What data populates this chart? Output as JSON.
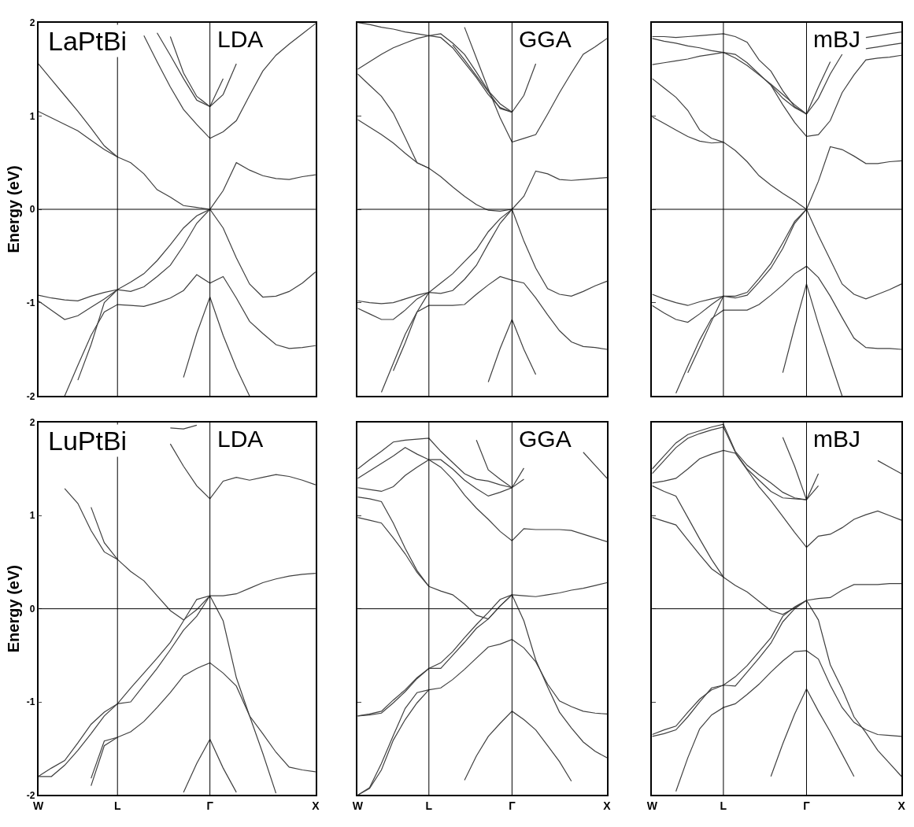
{
  "chart_data": [
    {
      "type": "line",
      "ylabel": "Energy (eV)",
      "annotations": [
        "LaPtBi",
        "LDA"
      ],
      "ylim": [
        -2,
        2
      ],
      "yticks": [
        -2,
        -1,
        0,
        1,
        2
      ],
      "tick_labels": "y",
      "marker": "none",
      "line_style": "solid",
      "categories": [
        "W",
        null,
        null,
        null,
        null,
        null,
        "L",
        null,
        null,
        null,
        null,
        null,
        null,
        "Γ",
        null,
        null,
        null,
        null,
        null,
        null,
        null,
        "X"
      ],
      "ref_lines": [
        {
          "axis": "x",
          "value": "L",
          "color": "#000000"
        },
        {
          "axis": "x",
          "value": "Γ",
          "color": "#000000"
        },
        {
          "axis": "y",
          "value": 0,
          "color": "#000000"
        }
      ],
      "series": [
        {
          "color": "#404040",
          "values": [
            -0.92,
            -0.95,
            -0.97,
            -0.98,
            -0.93,
            -0.89,
            -0.86,
            -0.78,
            -0.69,
            -0.55,
            -0.38,
            -0.2,
            -0.07,
            0,
            -0.2,
            -0.52,
            -0.8,
            -0.94,
            -0.93,
            -0.88,
            -0.79,
            -0.67
          ]
        },
        {
          "color": "#404040",
          "values": [
            -0.98,
            -1.08,
            -1.18,
            -1.14,
            -1.05,
            -0.96,
            -0.86,
            -0.88,
            -0.83,
            -0.72,
            -0.6,
            -0.39,
            -0.15,
            0,
            0.2,
            0.5,
            0.42,
            0.36,
            0.33,
            0.32,
            0.35,
            0.37
          ]
        },
        {
          "color": "#404040",
          "values": [
            null,
            null,
            -2,
            -1.67,
            -1.35,
            -1.1,
            -1.02,
            -1.03,
            -1.04,
            -1.0,
            -0.95,
            -0.87,
            -0.7,
            -0.79,
            -0.72,
            -0.95,
            -1.2,
            -1.33,
            -1.45,
            -1.49,
            -1.48,
            -1.46
          ]
        },
        {
          "color": "#404040",
          "values": [
            null,
            null,
            null,
            -1.83,
            -1.45,
            -1.0,
            -0.86,
            null,
            null,
            null,
            null,
            null,
            null,
            null,
            null,
            null,
            null,
            null,
            null,
            null,
            null,
            null
          ]
        },
        {
          "color": "#404040",
          "values": [
            null,
            null,
            null,
            null,
            null,
            null,
            null,
            null,
            null,
            null,
            null,
            -1.8,
            -1.33,
            -0.94,
            -1.35,
            -1.7,
            -2,
            null,
            null,
            null,
            null,
            null
          ]
        },
        {
          "color": "#404040",
          "values": [
            1.05,
            0.98,
            0.91,
            0.84,
            0.74,
            0.64,
            0.56,
            0.5,
            0.38,
            0.21,
            0.13,
            0.04,
            0.02,
            0,
            null,
            null,
            null,
            null,
            null,
            null,
            null,
            null
          ]
        },
        {
          "color": "#404040",
          "values": [
            1.56,
            1.39,
            1.22,
            1.05,
            0.87,
            0.68,
            0.56,
            null,
            null,
            null,
            null,
            null,
            null,
            null,
            null,
            null,
            null,
            null,
            null,
            null,
            null,
            null
          ]
        },
        {
          "color": "#404040",
          "values": [
            null,
            null,
            null,
            null,
            null,
            null,
            null,
            null,
            1.86,
            1.58,
            1.31,
            1.07,
            0.91,
            0.76,
            0.83,
            0.95,
            1.22,
            1.48,
            1.65,
            1.77,
            1.88,
            1.99
          ]
        },
        {
          "color": "#404040",
          "values": [
            null,
            null,
            null,
            null,
            null,
            null,
            null,
            null,
            null,
            null,
            1.85,
            1.46,
            1.21,
            1.1,
            1.23,
            1.56,
            null,
            null,
            null,
            null,
            null,
            null
          ]
        },
        {
          "color": "#404040",
          "values": [
            null,
            null,
            null,
            null,
            null,
            null,
            null,
            null,
            null,
            1.89,
            1.65,
            1.4,
            1.17,
            1.1,
            1.4,
            null,
            null,
            null,
            null,
            null,
            null,
            null
          ]
        }
      ]
    },
    {
      "type": "line",
      "annotations": [
        "GGA"
      ],
      "ylim": [
        -2,
        2
      ],
      "yticks": [
        -2,
        -1,
        0,
        1,
        2
      ],
      "tick_labels": false,
      "marker": "none",
      "line_style": "solid",
      "categories": [
        "W",
        null,
        null,
        null,
        null,
        null,
        "L",
        null,
        null,
        null,
        null,
        null,
        null,
        "Γ",
        null,
        null,
        null,
        null,
        null,
        null,
        null,
        "X"
      ],
      "ref_lines": [
        {
          "axis": "x",
          "value": "L",
          "color": "#000000"
        },
        {
          "axis": "x",
          "value": "Γ",
          "color": "#000000"
        },
        {
          "axis": "y",
          "value": 0,
          "color": "#000000"
        }
      ],
      "series": [
        {
          "color": "#404040",
          "values": [
            -0.98,
            -1.0,
            -1.01,
            -1.0,
            -0.96,
            -0.92,
            -0.89,
            -0.79,
            -0.69,
            -0.56,
            -0.43,
            -0.24,
            -0.1,
            0,
            -0.34,
            -0.63,
            -0.85,
            -0.91,
            -0.93,
            -0.88,
            -0.82,
            -0.77
          ]
        },
        {
          "color": "#404040",
          "values": [
            -1.06,
            -1.12,
            -1.18,
            -1.18,
            -1.08,
            -0.96,
            -0.89,
            -0.9,
            -0.87,
            -0.75,
            -0.6,
            -0.37,
            -0.15,
            0,
            0.14,
            0.41,
            0.38,
            0.32,
            0.31,
            0.32,
            0.33,
            0.34
          ]
        },
        {
          "color": "#404040",
          "values": [
            null,
            null,
            -1.96,
            -1.65,
            -1.34,
            -1.1,
            -1.03,
            -1.03,
            -1.03,
            -1.02,
            -0.91,
            -0.81,
            -0.72,
            -0.76,
            -0.79,
            -0.95,
            -1.13,
            -1.3,
            -1.42,
            -1.47,
            -1.48,
            -1.5
          ]
        },
        {
          "color": "#404040",
          "values": [
            null,
            null,
            null,
            -1.73,
            -1.43,
            -1.1,
            -0.89,
            null,
            null,
            null,
            null,
            null,
            null,
            null,
            null,
            null,
            null,
            null,
            null,
            null,
            null,
            null
          ]
        },
        {
          "color": "#404040",
          "values": [
            null,
            null,
            null,
            null,
            null,
            null,
            null,
            null,
            null,
            null,
            null,
            -1.85,
            -1.49,
            -1.18,
            -1.5,
            -1.77,
            null,
            null,
            null,
            null,
            null,
            null
          ]
        },
        {
          "color": "#404040",
          "values": [
            0.96,
            0.88,
            0.8,
            0.71,
            0.6,
            0.5,
            0.44,
            0.35,
            0.24,
            0.14,
            0.05,
            -0.01,
            -0.02,
            0,
            null,
            null,
            null,
            null,
            null,
            null,
            null,
            null
          ]
        },
        {
          "color": "#404040",
          "values": [
            1.45,
            1.33,
            1.21,
            1.03,
            0.77,
            0.5,
            0.44,
            null,
            null,
            null,
            null,
            null,
            null,
            null,
            null,
            null,
            null,
            null,
            null,
            null,
            null,
            null
          ]
        },
        {
          "color": "#404040",
          "values": [
            null,
            null,
            null,
            null,
            null,
            null,
            null,
            null,
            null,
            1.95,
            1.62,
            1.29,
            0.98,
            0.72,
            0.76,
            0.8,
            1.02,
            1.25,
            1.46,
            1.66,
            1.74,
            1.83
          ]
        },
        {
          "color": "#404040",
          "values": [
            null,
            null,
            null,
            null,
            null,
            null,
            null,
            null,
            1.76,
            1.6,
            1.43,
            1.26,
            1.08,
            1.04,
            1.22,
            1.56,
            null,
            null,
            null,
            null,
            null,
            null
          ]
        },
        {
          "color": "#404040",
          "values": [
            1.5,
            1.58,
            1.66,
            1.73,
            1.78,
            1.83,
            1.86,
            1.84,
            1.73,
            1.57,
            1.41,
            1.23,
            1.09,
            1.04,
            null,
            null,
            null,
            null,
            null,
            null,
            null,
            null
          ]
        },
        {
          "color": "#404040",
          "values": [
            2,
            1.98,
            1.95,
            1.93,
            1.9,
            1.88,
            1.86,
            1.88,
            1.78,
            1.66,
            1.47,
            1.27,
            1.13,
            1.04,
            null,
            null,
            null,
            null,
            null,
            null,
            null,
            null
          ]
        }
      ]
    },
    {
      "type": "line",
      "annotations": [
        "mBJ"
      ],
      "ylim": [
        -2,
        2
      ],
      "yticks": [
        -2,
        -1,
        0,
        1,
        2
      ],
      "tick_labels": false,
      "marker": "none",
      "line_style": "solid",
      "categories": [
        "W",
        null,
        null,
        null,
        null,
        null,
        "L",
        null,
        null,
        null,
        null,
        null,
        null,
        "Γ",
        null,
        null,
        null,
        null,
        null,
        null,
        null,
        "X"
      ],
      "ref_lines": [
        {
          "axis": "x",
          "value": "L",
          "color": "#000000"
        },
        {
          "axis": "x",
          "value": "Γ",
          "color": "#000000"
        },
        {
          "axis": "y",
          "value": 0,
          "color": "#000000"
        }
      ],
      "series": [
        {
          "color": "#404040",
          "values": [
            -0.91,
            -0.96,
            -1.0,
            -1.03,
            -0.99,
            -0.96,
            -0.93,
            -0.93,
            -0.89,
            -0.74,
            -0.58,
            -0.36,
            -0.13,
            0,
            -0.28,
            -0.54,
            -0.8,
            -0.91,
            -0.96,
            -0.91,
            -0.86,
            -0.8
          ]
        },
        {
          "color": "#404040",
          "values": [
            -1.03,
            -1.11,
            -1.18,
            -1.21,
            -1.12,
            -1.02,
            -0.93,
            -0.95,
            -0.92,
            -0.78,
            -0.63,
            -0.42,
            -0.15,
            0,
            0.3,
            0.67,
            0.64,
            0.57,
            0.49,
            0.49,
            0.51,
            0.52
          ]
        },
        {
          "color": "#404040",
          "values": [
            null,
            null,
            -1.97,
            -1.68,
            -1.4,
            -1.17,
            -1.08,
            -1.08,
            -1.08,
            -1.02,
            -0.92,
            -0.81,
            -0.69,
            -0.61,
            -0.73,
            -0.93,
            -1.16,
            -1.38,
            -1.48,
            -1.49,
            -1.49,
            -1.5
          ]
        },
        {
          "color": "#404040",
          "values": [
            null,
            null,
            null,
            -1.75,
            -1.48,
            -1.2,
            -0.93,
            null,
            null,
            null,
            null,
            null,
            null,
            null,
            null,
            null,
            null,
            null,
            null,
            null,
            null,
            null
          ]
        },
        {
          "color": "#404040",
          "values": [
            null,
            null,
            null,
            null,
            null,
            null,
            null,
            null,
            null,
            null,
            null,
            -1.75,
            -1.26,
            -0.8,
            -1.23,
            -1.62,
            -2,
            null,
            null,
            null,
            null,
            null
          ]
        },
        {
          "color": "#404040",
          "values": [
            0.99,
            0.92,
            0.85,
            0.78,
            0.73,
            0.71,
            0.72,
            0.63,
            0.51,
            0.36,
            0.26,
            0.17,
            0.09,
            0,
            null,
            null,
            null,
            null,
            null,
            null,
            null,
            null
          ]
        },
        {
          "color": "#404040",
          "values": [
            1.4,
            1.3,
            1.2,
            1.06,
            0.85,
            0.76,
            0.72,
            null,
            null,
            null,
            null,
            null,
            null,
            null,
            null,
            null,
            null,
            null,
            null,
            null,
            null,
            null
          ]
        },
        {
          "color": "#404040",
          "values": [
            1.55,
            1.57,
            1.59,
            1.61,
            1.64,
            1.66,
            1.68,
            1.66,
            1.57,
            1.45,
            1.33,
            1.19,
            1.09,
            1.02,
            null,
            null,
            null,
            null,
            null,
            null,
            null,
            null
          ]
        },
        {
          "color": "#404040",
          "values": [
            null,
            null,
            null,
            null,
            null,
            null,
            null,
            null,
            null,
            null,
            1.33,
            1.12,
            0.93,
            0.78,
            0.8,
            0.95,
            1.25,
            1.44,
            1.6,
            1.62,
            1.63,
            1.65
          ]
        },
        {
          "color": "#404040",
          "values": [
            1.85,
            1.85,
            1.84,
            1.85,
            1.86,
            1.87,
            1.88,
            1.85,
            1.79,
            1.6,
            1.48,
            1.27,
            1.1,
            1.02,
            1.19,
            1.45,
            1.66,
            null,
            1.72,
            1.74,
            1.76,
            1.78
          ]
        },
        {
          "color": "#404040",
          "values": [
            1.83,
            1.8,
            1.78,
            1.75,
            1.73,
            1.7,
            1.68,
            1.62,
            1.54,
            1.44,
            1.34,
            1.23,
            1.12,
            1.02,
            1.31,
            1.58,
            null,
            null,
            1.84,
            1.86,
            1.88,
            1.9
          ]
        }
      ]
    },
    {
      "type": "line",
      "ylabel": "Energy (eV)",
      "annotations": [
        "LuPtBi",
        "LDA"
      ],
      "ylim": [
        -2,
        2
      ],
      "yticks": [
        -2,
        -1,
        0,
        1,
        2
      ],
      "marker": "none",
      "line_style": "solid",
      "categories": [
        "W",
        null,
        null,
        null,
        null,
        null,
        "L",
        null,
        null,
        null,
        null,
        null,
        null,
        "Γ",
        null,
        null,
        null,
        null,
        null,
        null,
        null,
        "X"
      ],
      "ref_lines": [
        {
          "axis": "x",
          "value": "L",
          "color": "#000000"
        },
        {
          "axis": "x",
          "value": "Γ",
          "color": "#000000"
        },
        {
          "axis": "y",
          "value": 0,
          "color": "#000000"
        }
      ],
      "series": [
        {
          "color": "#404040",
          "values": [
            -1.8,
            -1.71,
            -1.63,
            -1.44,
            -1.24,
            -1.11,
            -1.02,
            -0.85,
            -0.69,
            -0.53,
            -0.36,
            -0.13,
            0.1,
            0.14,
            0.14,
            0.16,
            0.22,
            0.28,
            0.32,
            0.35,
            0.37,
            0.38
          ]
        },
        {
          "color": "#404040",
          "values": [
            -1.8,
            -1.8,
            -1.68,
            -1.52,
            -1.34,
            -1.15,
            -1.02,
            -1.0,
            -0.82,
            -0.64,
            -0.44,
            -0.23,
            -0.08,
            0.14,
            -0.13,
            -0.74,
            -1.15,
            -1.55,
            -1.98,
            null,
            null,
            null
          ]
        },
        {
          "color": "#404040",
          "values": [
            null,
            null,
            null,
            null,
            -1.82,
            -1.42,
            -1.38,
            -1.32,
            -1.21,
            -1.06,
            -0.9,
            -0.72,
            -0.64,
            -0.58,
            -0.69,
            -0.83,
            -1.15,
            -1.34,
            -1.54,
            -1.7,
            -1.73,
            -1.75
          ]
        },
        {
          "color": "#404040",
          "values": [
            null,
            null,
            null,
            null,
            -1.9,
            -1.47,
            -1.38,
            null,
            null,
            null,
            null,
            null,
            null,
            null,
            null,
            null,
            null,
            null,
            null,
            null,
            null,
            null
          ]
        },
        {
          "color": "#404040",
          "values": [
            null,
            null,
            null,
            null,
            null,
            null,
            null,
            null,
            null,
            null,
            null,
            -1.97,
            -1.66,
            -1.4,
            -1.71,
            -1.97,
            null,
            null,
            null,
            null,
            null,
            null
          ]
        },
        {
          "color": "#404040",
          "values": [
            null,
            null,
            1.29,
            1.13,
            0.84,
            0.61,
            0.53,
            0.4,
            0.3,
            0.14,
            -0.02,
            -0.12,
            -0.01,
            0.14,
            null,
            null,
            null,
            null,
            null,
            null,
            null,
            null
          ]
        },
        {
          "color": "#404040",
          "values": [
            null,
            null,
            null,
            null,
            1.09,
            0.71,
            0.53,
            null,
            null,
            null,
            null,
            null,
            null,
            null,
            null,
            null,
            null,
            null,
            null,
            null,
            null,
            null
          ]
        },
        {
          "color": "#404040",
          "values": [
            null,
            null,
            null,
            null,
            null,
            null,
            null,
            null,
            null,
            null,
            1.77,
            1.53,
            1.32,
            1.18,
            1.37,
            1.41,
            1.38,
            1.41,
            1.44,
            1.42,
            1.38,
            1.33
          ]
        },
        {
          "color": "#404040",
          "values": [
            null,
            null,
            null,
            null,
            null,
            null,
            null,
            null,
            null,
            null,
            1.94,
            1.93,
            1.97,
            null,
            null,
            null,
            null,
            null,
            null,
            null,
            null,
            null
          ]
        }
      ]
    },
    {
      "type": "line",
      "annotations": [
        "GGA"
      ],
      "ylim": [
        -2,
        2
      ],
      "yticks": [
        -2,
        -1,
        0,
        1,
        2
      ],
      "tick_labels": "x",
      "marker": "none",
      "line_style": "solid",
      "categories": [
        "W",
        null,
        null,
        null,
        null,
        null,
        "L",
        null,
        null,
        null,
        null,
        null,
        null,
        "Γ",
        null,
        null,
        null,
        null,
        null,
        null,
        null,
        "X"
      ],
      "ref_lines": [
        {
          "axis": "x",
          "value": "L",
          "color": "#000000"
        },
        {
          "axis": "x",
          "value": "Γ",
          "color": "#000000"
        },
        {
          "axis": "y",
          "value": 0,
          "color": "#000000"
        }
      ],
      "series": [
        {
          "color": "#404040",
          "values": [
            -1.15,
            -1.13,
            -1.1,
            -0.98,
            -0.87,
            -0.74,
            -0.64,
            -0.58,
            -0.46,
            -0.31,
            -0.17,
            -0.04,
            0.1,
            0.15,
            0.14,
            0.13,
            0.15,
            0.17,
            0.2,
            0.22,
            0.25,
            0.28
          ]
        },
        {
          "color": "#404040",
          "values": [
            -1.15,
            -1.14,
            -1.12,
            -1.01,
            -0.89,
            -0.75,
            -0.64,
            -0.64,
            -0.5,
            -0.36,
            -0.21,
            -0.11,
            0.03,
            0.15,
            -0.13,
            -0.55,
            -0.84,
            -1.11,
            -1.28,
            -1.43,
            -1.53,
            -1.6
          ]
        },
        {
          "color": "#404040",
          "values": [
            -2,
            -1.92,
            -1.66,
            -1.36,
            -1.07,
            -0.9,
            -0.87,
            -0.85,
            -0.76,
            -0.65,
            -0.53,
            -0.41,
            -0.38,
            -0.33,
            -0.42,
            -0.57,
            -0.81,
            -0.99,
            -1.05,
            -1.1,
            -1.12,
            -1.13
          ]
        },
        {
          "color": "#404040",
          "values": [
            -2,
            -1.93,
            -1.73,
            -1.41,
            -1.19,
            -1.01,
            -0.87,
            null,
            null,
            null,
            null,
            null,
            null,
            null,
            null,
            null,
            null,
            null,
            null,
            null,
            null,
            null
          ]
        },
        {
          "color": "#404040",
          "values": [
            null,
            null,
            null,
            null,
            null,
            null,
            null,
            null,
            null,
            -1.84,
            -1.58,
            -1.37,
            -1.23,
            -1.1,
            -1.19,
            -1.3,
            -1.47,
            -1.64,
            -1.85,
            null,
            null,
            null
          ]
        },
        {
          "color": "#404040",
          "values": [
            0.98,
            0.95,
            0.92,
            0.76,
            0.59,
            0.39,
            0.24,
            0.19,
            0.15,
            0.05,
            -0.07,
            -0.11,
            0.03,
            0.15,
            null,
            null,
            null,
            null,
            null,
            null,
            null,
            null
          ]
        },
        {
          "color": "#404040",
          "values": [
            1.2,
            1.18,
            1.15,
            0.92,
            0.65,
            0.41,
            0.24,
            null,
            null,
            null,
            null,
            null,
            null,
            null,
            null,
            null,
            null,
            null,
            null,
            null,
            null,
            null
          ]
        },
        {
          "color": "#404040",
          "values": [
            1.3,
            1.28,
            1.26,
            1.31,
            1.43,
            1.52,
            1.6,
            1.52,
            1.39,
            1.22,
            1.08,
            0.96,
            0.83,
            0.73,
            0.86,
            0.85,
            0.85,
            0.85,
            0.84,
            0.8,
            0.76,
            0.72
          ]
        },
        {
          "color": "#404040",
          "values": [
            1.5,
            1.6,
            1.69,
            1.79,
            1.81,
            1.82,
            1.83,
            1.69,
            1.57,
            1.45,
            1.39,
            1.37,
            1.33,
            1.3,
            1.39,
            null,
            null,
            null,
            null,
            null,
            null,
            null
          ]
        },
        {
          "color": "#404040",
          "values": [
            1.4,
            1.48,
            1.56,
            1.64,
            1.73,
            1.66,
            1.6,
            1.6,
            1.5,
            1.38,
            1.29,
            1.21,
            1.25,
            1.3,
            1.51,
            null,
            null,
            null,
            null,
            null,
            null,
            null
          ]
        },
        {
          "color": "#404040",
          "values": [
            null,
            null,
            null,
            null,
            null,
            null,
            null,
            null,
            null,
            null,
            1.81,
            1.49,
            1.39,
            1.3,
            null,
            null,
            null,
            null,
            null,
            null,
            null,
            null
          ]
        },
        {
          "color": "#404040",
          "values": [
            null,
            null,
            null,
            null,
            null,
            null,
            null,
            null,
            null,
            null,
            null,
            null,
            null,
            null,
            null,
            null,
            null,
            null,
            null,
            1.68,
            1.54,
            1.4
          ]
        }
      ]
    },
    {
      "type": "line",
      "annotations": [
        "mBJ"
      ],
      "ylim": [
        -2,
        2
      ],
      "yticks": [
        -2,
        -1,
        0,
        1,
        2
      ],
      "tick_labels": "x",
      "marker": "none",
      "line_style": "solid",
      "categories": [
        "W",
        null,
        null,
        null,
        null,
        null,
        "L",
        null,
        null,
        null,
        null,
        null,
        null,
        "Γ",
        null,
        null,
        null,
        null,
        null,
        null,
        null,
        "X"
      ],
      "ref_lines": [
        {
          "axis": "x",
          "value": "L",
          "color": "#000000"
        },
        {
          "axis": "x",
          "value": "Γ",
          "color": "#000000"
        },
        {
          "axis": "y",
          "value": 0,
          "color": "#000000"
        }
      ],
      "series": [
        {
          "color": "#404040",
          "values": [
            -1.35,
            -1.3,
            -1.26,
            -1.11,
            -0.97,
            -0.87,
            -0.82,
            -0.73,
            -0.61,
            -0.46,
            -0.31,
            -0.08,
            0.02,
            0.09,
            0.11,
            0.12,
            0.2,
            0.26,
            0.26,
            0.26,
            0.27,
            0.27
          ]
        },
        {
          "color": "#404040",
          "values": [
            -1.37,
            -1.34,
            -1.3,
            -1.16,
            -1.0,
            -0.85,
            -0.82,
            -0.83,
            -0.68,
            -0.53,
            -0.37,
            -0.14,
            0.0,
            0.09,
            -0.12,
            -0.6,
            -0.86,
            -1.16,
            -1.33,
            -1.52,
            -1.66,
            -1.8
          ]
        },
        {
          "color": "#404040",
          "values": [
            null,
            null,
            -1.96,
            -1.6,
            -1.29,
            -1.14,
            -1.06,
            -1.02,
            -0.92,
            -0.81,
            -0.68,
            -0.56,
            -0.46,
            -0.45,
            -0.54,
            -0.82,
            -1.06,
            -1.22,
            -1.3,
            -1.35,
            -1.36,
            -1.37
          ]
        },
        {
          "color": "#404040",
          "values": [
            null,
            null,
            null,
            null,
            null,
            null,
            null,
            null,
            null,
            null,
            -1.8,
            -1.45,
            -1.13,
            -0.86,
            -1.1,
            -1.32,
            -1.56,
            -1.8,
            null,
            null,
            null,
            null
          ]
        },
        {
          "color": "#404040",
          "values": [
            0.98,
            0.94,
            0.9,
            0.74,
            0.58,
            0.43,
            0.34,
            0.25,
            0.18,
            0.08,
            -0.02,
            -0.06,
            0.01,
            0.09,
            null,
            null,
            null,
            null,
            null,
            null,
            null,
            null
          ]
        },
        {
          "color": "#404040",
          "values": [
            1.32,
            1.26,
            1.21,
            0.98,
            0.75,
            0.53,
            0.34,
            null,
            null,
            null,
            null,
            null,
            null,
            null,
            null,
            null,
            null,
            null,
            null,
            null,
            null,
            null
          ]
        },
        {
          "color": "#404040",
          "values": [
            1.35,
            1.37,
            1.4,
            1.5,
            1.61,
            1.66,
            1.7,
            1.67,
            1.49,
            1.31,
            1.16,
            0.99,
            0.82,
            0.66,
            0.78,
            0.8,
            0.87,
            0.96,
            1.01,
            1.05,
            1.0,
            0.95
          ]
        },
        {
          "color": "#404040",
          "values": [
            1.5,
            1.64,
            1.78,
            1.87,
            1.91,
            1.95,
            1.98,
            1.69,
            1.54,
            1.44,
            1.35,
            1.25,
            1.19,
            1.17,
            1.32,
            null,
            null,
            null,
            null,
            null,
            null,
            null
          ]
        },
        {
          "color": "#404040",
          "values": [
            1.45,
            1.59,
            1.73,
            1.83,
            1.88,
            1.92,
            1.95,
            1.68,
            1.5,
            1.38,
            1.26,
            1.19,
            1.18,
            1.17,
            1.45,
            null,
            null,
            null,
            null,
            null,
            null,
            null
          ]
        },
        {
          "color": "#404040",
          "values": [
            null,
            null,
            null,
            null,
            null,
            null,
            null,
            null,
            null,
            null,
            null,
            1.84,
            1.53,
            1.17,
            null,
            null,
            null,
            null,
            null,
            null,
            null,
            null
          ]
        },
        {
          "color": "#404040",
          "values": [
            null,
            null,
            null,
            null,
            null,
            null,
            null,
            null,
            null,
            null,
            null,
            null,
            null,
            null,
            null,
            null,
            null,
            null,
            null,
            1.59,
            1.52,
            1.45
          ]
        }
      ]
    }
  ]
}
